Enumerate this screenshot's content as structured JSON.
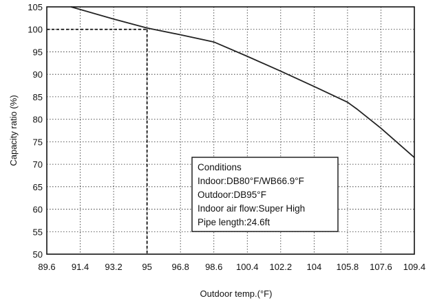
{
  "chart_data": {
    "type": "line",
    "xlabel": "Outdoor temp.(°F)",
    "ylabel": "Capacity ratio (%)",
    "x_ticks": [
      "89.6",
      "91.4",
      "93.2",
      "95",
      "96.8",
      "98.6",
      "100.4",
      "102.2",
      "104",
      "105.8",
      "107.6",
      "109.4"
    ],
    "y_ticks": [
      "50",
      "55",
      "60",
      "65",
      "70",
      "75",
      "80",
      "85",
      "90",
      "95",
      "100",
      "105"
    ],
    "xlim": [
      89.6,
      109.4
    ],
    "ylim": [
      50,
      105
    ],
    "grid": true,
    "series": [
      {
        "x": [
          90.9,
          93.2,
          95.0,
          96.8,
          98.6,
          100.4,
          102.2,
          104.0,
          105.8,
          106.3,
          107.6,
          109.4
        ],
        "y": [
          105,
          102.3,
          100.3,
          98.8,
          97.2,
          94.0,
          90.7,
          87.3,
          83.8,
          82.3,
          78.0,
          71.5
        ]
      }
    ],
    "reference": {
      "x": 95,
      "y": 100
    },
    "conditions": {
      "title": "Conditions",
      "lines": [
        "Indoor:DB80°F/WB66.9°F",
        "Outdoor:DB95°F",
        "Indoor air flow:Super High",
        "Pipe length:24.6ft"
      ]
    }
  }
}
